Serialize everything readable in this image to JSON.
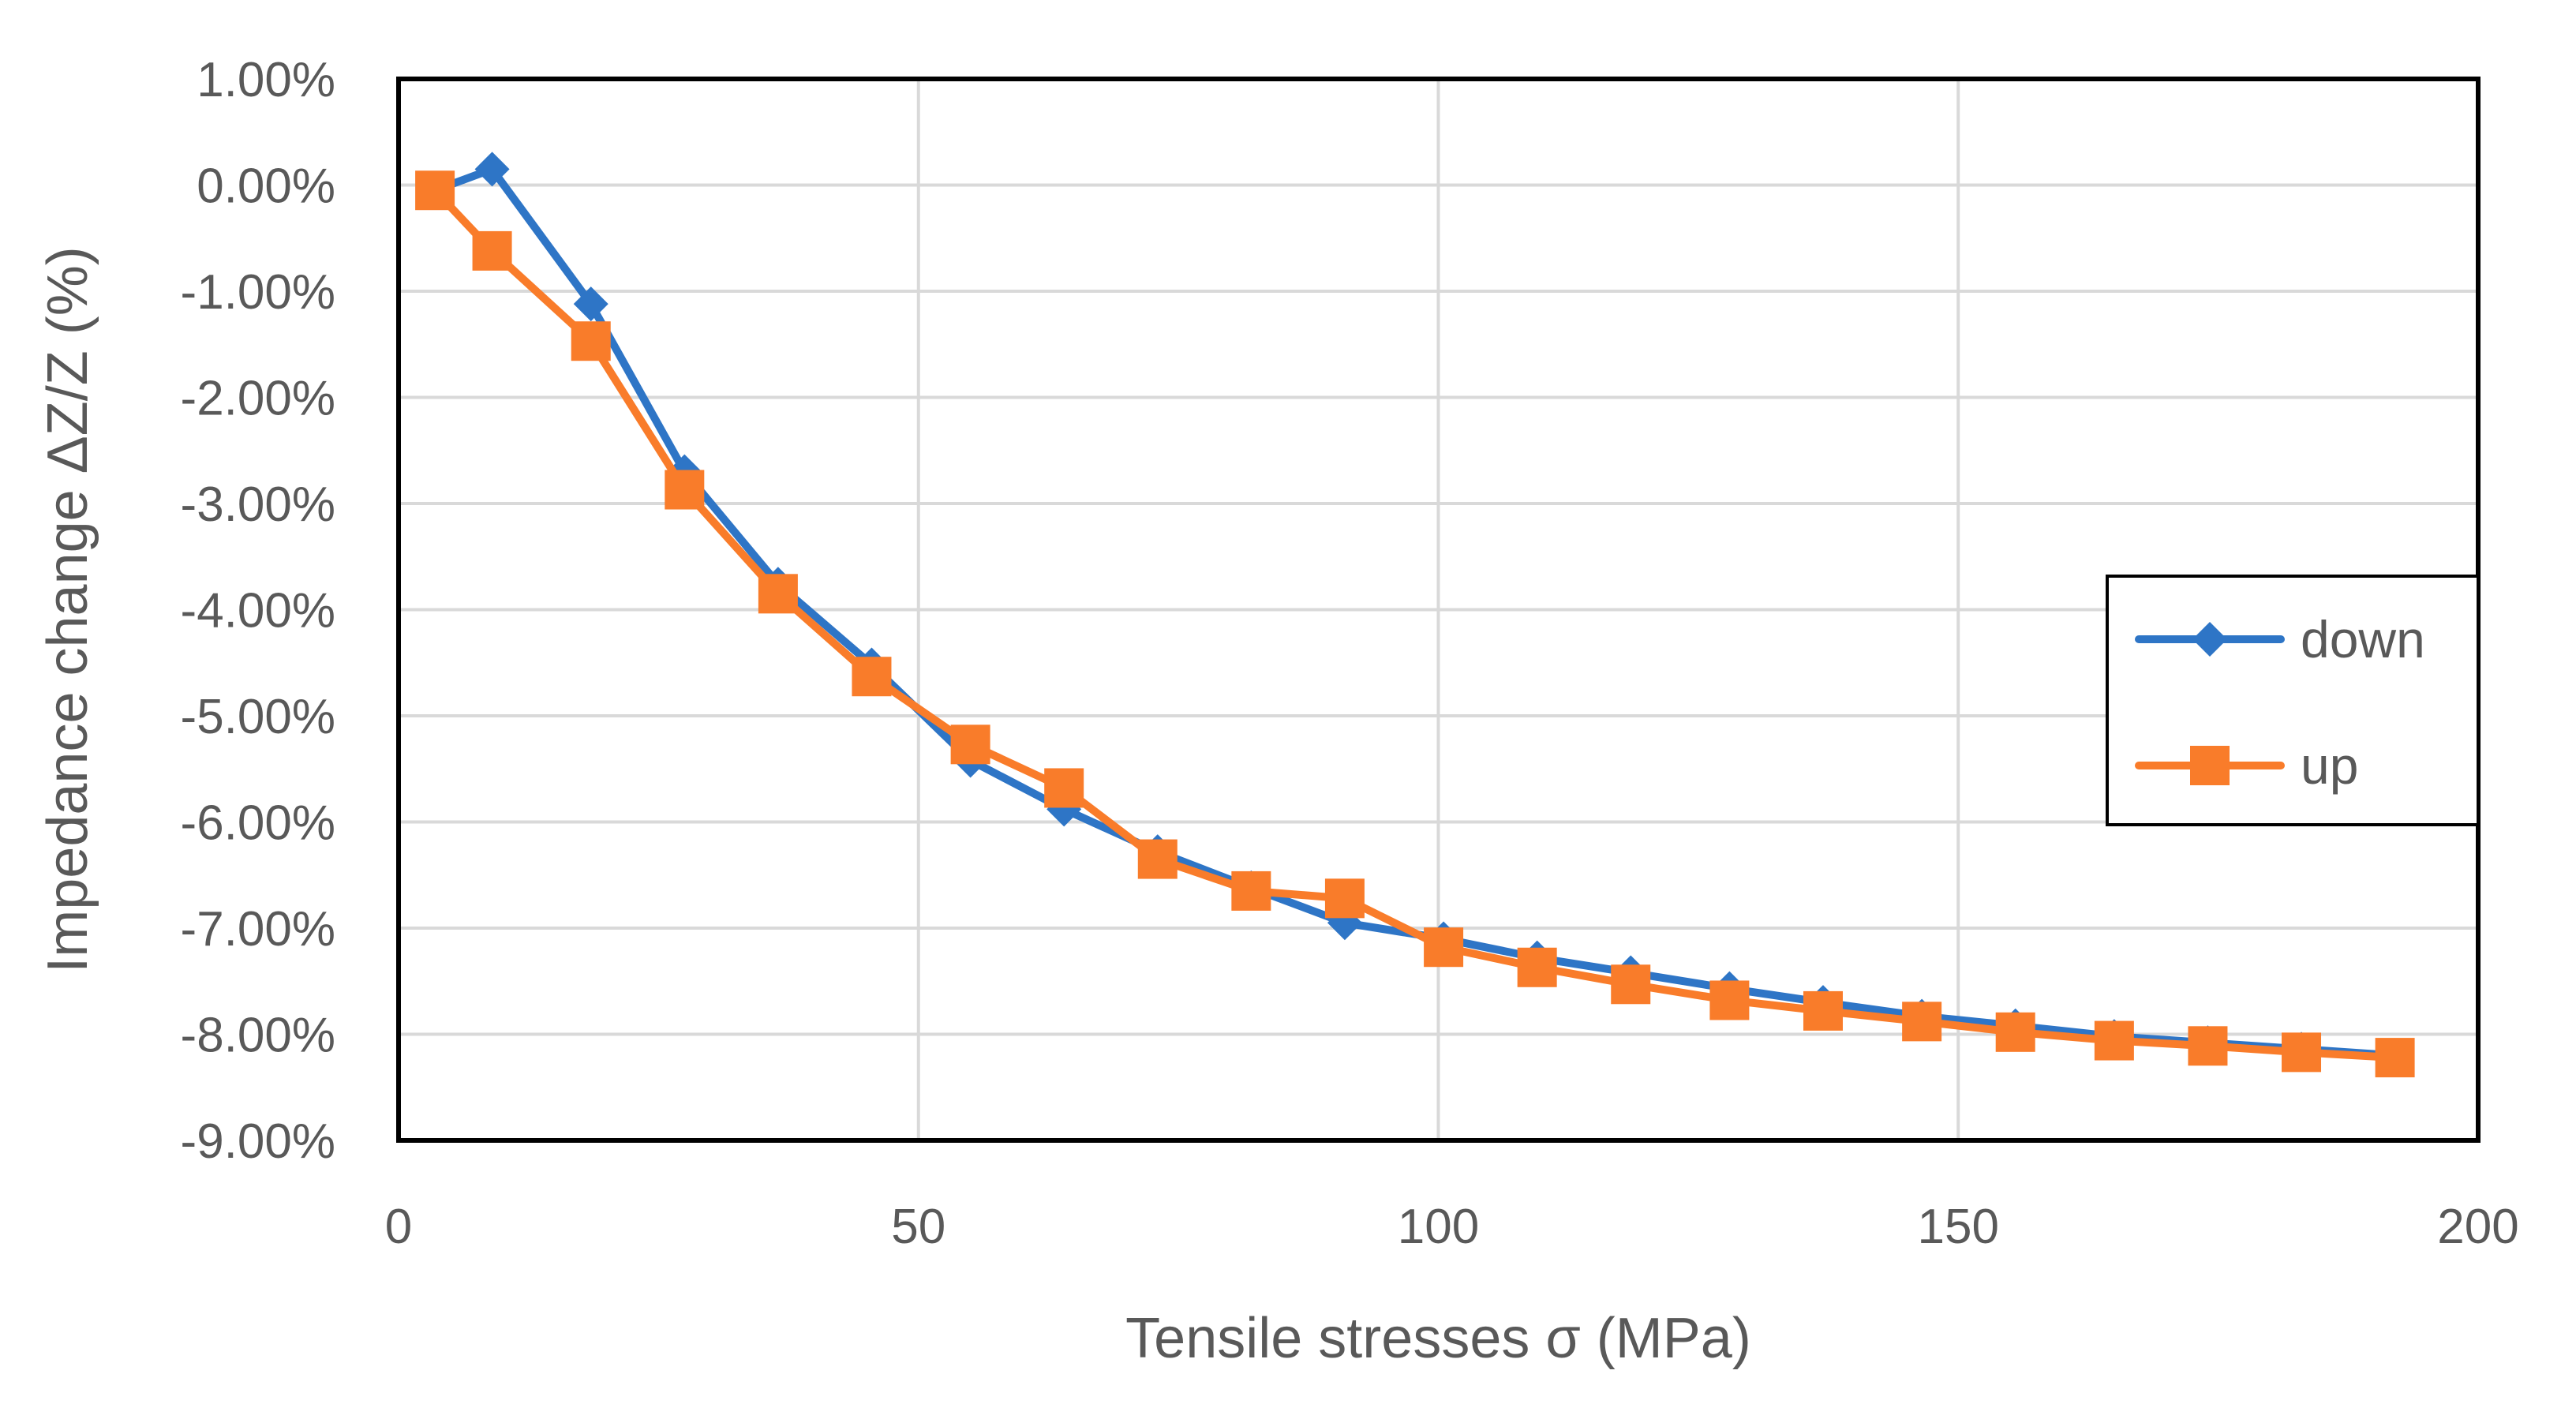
{
  "chart_data": {
    "type": "line",
    "xlabel": "Tensile stresses σ (MPa)",
    "ylabel": "Impedance change ΔZ/Z (%)",
    "xlim": [
      0,
      200
    ],
    "ylim": [
      -9,
      1
    ],
    "x_ticks": [
      0,
      50,
      100,
      150,
      200
    ],
    "x_tick_labels": [
      "0",
      "50",
      "100",
      "150",
      "200"
    ],
    "y_ticks": [
      1,
      0,
      -1,
      -2,
      -3,
      -4,
      -5,
      -6,
      -7,
      -8,
      -9
    ],
    "y_tick_labels": [
      "1.00%",
      "0.00%",
      "-1.00%",
      "-2.00%",
      "-3.00%",
      "-4.00%",
      "-5.00%",
      "-6.00%",
      "-7.00%",
      "-8.00%",
      "-9.00%"
    ],
    "grid": true,
    "legend_position": "right",
    "series": [
      {
        "name": "down",
        "color": "#2E75C6",
        "marker": "diamond",
        "x": [
          3.5,
          9,
          18.5,
          27.5,
          36.5,
          45.5,
          55,
          64,
          73,
          82,
          91,
          100.5,
          109.5,
          118.5,
          128,
          137,
          146.5,
          155.5,
          165,
          174,
          183,
          192
        ],
        "y": [
          -0.05,
          0.15,
          -1.12,
          -2.7,
          -3.76,
          -4.52,
          -5.42,
          -5.88,
          -6.28,
          -6.62,
          -6.95,
          -7.1,
          -7.28,
          -7.42,
          -7.57,
          -7.7,
          -7.83,
          -7.92,
          -8.02,
          -8.08,
          -8.14,
          -8.2
        ]
      },
      {
        "name": "up",
        "color": "#F97C2A",
        "marker": "square",
        "x": [
          3.5,
          9,
          18.5,
          27.5,
          36.5,
          45.5,
          55,
          64,
          73,
          82,
          91,
          100.5,
          109.5,
          118.5,
          128,
          137,
          146.5,
          155.5,
          165,
          174,
          183,
          192
        ],
        "y": [
          -0.05,
          -0.62,
          -1.47,
          -2.87,
          -3.85,
          -4.63,
          -5.27,
          -5.68,
          -6.35,
          -6.65,
          -6.72,
          -7.18,
          -7.37,
          -7.53,
          -7.68,
          -7.78,
          -7.88,
          -7.98,
          -8.06,
          -8.11,
          -8.17,
          -8.22
        ]
      }
    ]
  }
}
